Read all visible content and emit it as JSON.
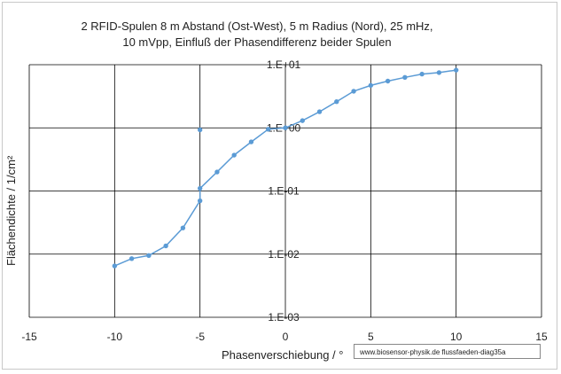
{
  "chart_data": {
    "type": "scatter",
    "title_lines": [
      "2 RFID-Spulen 8 m Abstand (Ost-West), 5 m Radius (Nord),  25 mHz,",
      "10 mVpp, Einfluß der Phasendifferenz beider Spulen"
    ],
    "xlabel": "Phasenverschiebung  / °",
    "ylabel": "Flächendichte  / 1/cm²",
    "xlim": [
      -15,
      15
    ],
    "ylim": [
      0.001,
      10
    ],
    "yscale": "log",
    "x_ticks": [
      -15,
      -10,
      -5,
      0,
      5,
      10,
      15
    ],
    "y_ticks": [
      {
        "value": 10,
        "label": "1.E+01"
      },
      {
        "value": 1,
        "label": "1.E+00"
      },
      {
        "value": 0.1,
        "label": "1.E-01"
      },
      {
        "value": 0.01,
        "label": "1.E-02"
      },
      {
        "value": 0.001,
        "label": "1.E-03"
      }
    ],
    "grid": true,
    "series": [
      {
        "color": "#5b9bd5",
        "points": [
          {
            "x": -10,
            "y": 0.0065
          },
          {
            "x": -9,
            "y": 0.0085
          },
          {
            "x": -8,
            "y": 0.0095
          },
          {
            "x": -7,
            "y": 0.0135
          },
          {
            "x": -6,
            "y": 0.026
          },
          {
            "x": -5,
            "y": 0.07
          },
          {
            "x": -5,
            "y": 0.11
          },
          {
            "x": -4,
            "y": 0.2
          },
          {
            "x": -3,
            "y": 0.37
          },
          {
            "x": -2,
            "y": 0.6
          },
          {
            "x": -1,
            "y": 0.95
          },
          {
            "x": 0,
            "y": 1.0
          },
          {
            "x": 1,
            "y": 1.3
          },
          {
            "x": 2,
            "y": 1.8
          },
          {
            "x": 3,
            "y": 2.6
          },
          {
            "x": 4,
            "y": 3.8
          },
          {
            "x": 5,
            "y": 4.7
          },
          {
            "x": 6,
            "y": 5.5
          },
          {
            "x": 7,
            "y": 6.3
          },
          {
            "x": 8,
            "y": 7.1
          },
          {
            "x": 9,
            "y": 7.5
          },
          {
            "x": 10,
            "y": 8.2
          }
        ],
        "outlier": {
          "x": -5,
          "y": 0.93
        }
      }
    ]
  },
  "watermark": "www.biosensor-physik.de  flussfaeden-diag35a"
}
